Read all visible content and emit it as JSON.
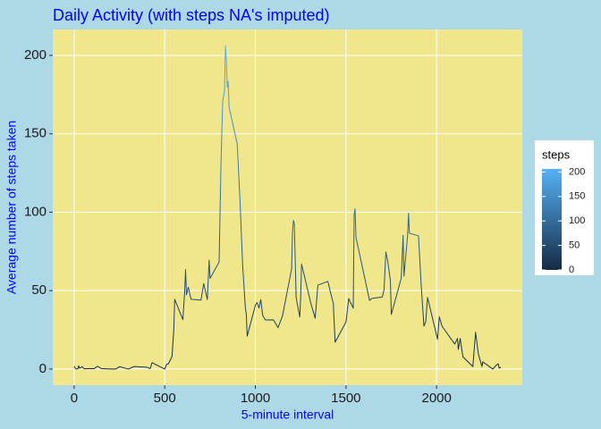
{
  "chart_data": {
    "type": "line",
    "title": "Daily Activity (with steps NA's imputed)",
    "x_label": "5-minute interval",
    "y_label": "Average number of steps taken",
    "x": [
      0,
      10,
      20,
      25,
      30,
      45,
      55,
      100,
      110,
      130,
      150,
      200,
      230,
      250,
      300,
      330,
      400,
      420,
      430,
      440,
      450,
      500,
      510,
      520,
      540,
      550,
      555,
      600,
      610,
      615,
      620,
      630,
      645,
      700,
      715,
      735,
      745,
      750,
      800,
      810,
      820,
      830,
      835,
      840,
      845,
      850,
      855,
      900,
      915,
      930,
      945,
      950,
      955,
      1000,
      1010,
      1020,
      1030,
      1040,
      1055,
      1100,
      1125,
      1150,
      1200,
      1205,
      1210,
      1215,
      1225,
      1245,
      1250,
      1255,
      1305,
      1330,
      1345,
      1400,
      1415,
      1430,
      1440,
      1500,
      1515,
      1540,
      1545,
      1550,
      1555,
      1630,
      1645,
      1700,
      1710,
      1720,
      1730,
      1745,
      1750,
      1805,
      1815,
      1820,
      1840,
      1845,
      1850,
      1900,
      1915,
      1930,
      1940,
      1950,
      2005,
      2015,
      2030,
      2100,
      2115,
      2120,
      2130,
      2145,
      2200,
      2215,
      2230,
      2250,
      2255,
      2310,
      2330,
      2340,
      2345,
      2355
    ],
    "values": [
      1.7,
      0.1,
      0.1,
      2.1,
      0.5,
      1.5,
      0.2,
      0.3,
      0.2,
      1.8,
      0.3,
      0,
      0,
      1.5,
      0,
      1.6,
      1.2,
      0.3,
      4.1,
      3.5,
      2.9,
      0,
      3,
      3.3,
      7.9,
      25,
      44.5,
      31.5,
      49.3,
      63.5,
      47.3,
      52.2,
      44.5,
      44,
      54.5,
      44.3,
      69.5,
      57.8,
      68.2,
      129.4,
      171.2,
      177.3,
      206.2,
      195.9,
      179.6,
      183.4,
      167,
      143.5,
      108,
      66,
      38.8,
      35,
      21,
      40.6,
      42.4,
      38.9,
      44.3,
      34.4,
      31.3,
      31.4,
      26.4,
      34,
      63.9,
      87.6,
      94.8,
      92.8,
      45.5,
      33.2,
      45.7,
      67,
      42.4,
      32.4,
      53.5,
      55.9,
      48.7,
      41.8,
      17.1,
      30,
      44.9,
      38.8,
      98.7,
      102.1,
      84,
      43.8,
      45.1,
      45.9,
      50.5,
      74.7,
      68.9,
      56.5,
      34.8,
      58,
      85.3,
      59.3,
      85.3,
      99.5,
      86.6,
      84.9,
      53.4,
      27.4,
      30.2,
      45.7,
      19,
      33.3,
      27.3,
      15.9,
      19.5,
      12.5,
      19.5,
      7.8,
      1.6,
      23.5,
      9.8,
      1.6,
      4.6,
      0,
      2.6,
      3.3,
      0.6,
      1.1
    ],
    "xlim": [
      -117.75,
      2472.75
    ],
    "ylim": [
      -10.3,
      216.5
    ],
    "xticks": [
      0,
      500,
      1000,
      1500,
      2000
    ],
    "yticks": [
      0,
      50,
      100,
      150,
      200
    ],
    "grid": true,
    "legend": "right",
    "legend_title": "steps",
    "color_scale": {
      "low": "#132B43",
      "high": "#56B1F7",
      "limits": [
        0,
        206.2
      ],
      "ticks": [
        0,
        50,
        100,
        150,
        200
      ]
    },
    "background": "#ADD8E6",
    "panel_color": "#F0E68C",
    "text_color": "#0000FF"
  }
}
